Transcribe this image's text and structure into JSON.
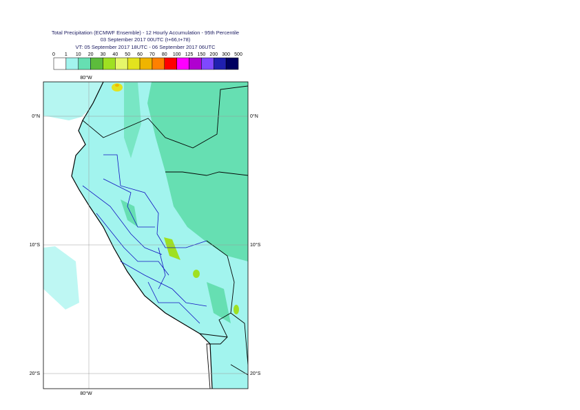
{
  "header": {
    "title": "Total Precipitation (ECMWF Ensemble) - 12 Hourly Accumulation - 95th Percentile",
    "run": "03 September 2017 00UTC (t+66,t+78)",
    "valid": "VT: 05 September 2017 18UTC - 06 September 2017 06UTC"
  },
  "legend": {
    "labels": [
      "0",
      "1",
      "10",
      "20",
      "30",
      "40",
      "50",
      "60",
      "70",
      "80",
      "100",
      "125",
      "150",
      "200",
      "300",
      "500"
    ],
    "colors": [
      "#ffffff",
      "#a2f4ee",
      "#66dfb2",
      "#5cbc3c",
      "#9fe021",
      "#e6f66a",
      "#e3e31e",
      "#f0b400",
      "#ff8000",
      "#ff0000",
      "#ff00ff",
      "#b000d0",
      "#7f48ff",
      "#2020b0",
      "#000060"
    ]
  },
  "map": {
    "lon_label": "80°W",
    "lat_labels": [
      "0°N",
      "10°S",
      "20°S"
    ]
  }
}
